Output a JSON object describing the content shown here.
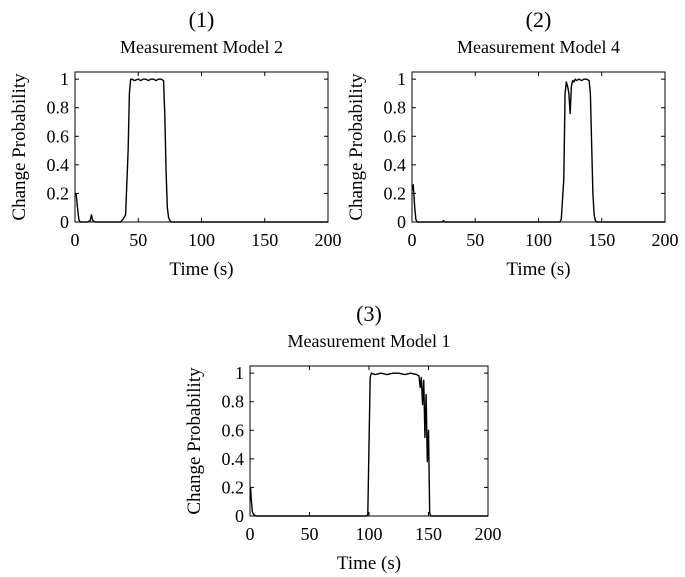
{
  "chart_data": [
    {
      "type": "line",
      "panel_label": "(1)",
      "title": "Measurement Model 2",
      "xlabel": "Time (s)",
      "ylabel": "Change Probability",
      "xlim": [
        0,
        200
      ],
      "ylim": [
        0,
        1.05
      ],
      "xticks": [
        0,
        50,
        100,
        150,
        200
      ],
      "yticks": [
        0,
        0.2,
        0.4,
        0.6,
        0.8,
        1
      ],
      "ytick_labels": [
        "0",
        "0.2",
        "0.4",
        "0.6",
        "0.8",
        "1"
      ],
      "grid": false,
      "series": [
        {
          "x": [
            0,
            1,
            2,
            3,
            4,
            6,
            10,
            12,
            13,
            14,
            16,
            20,
            36,
            37,
            38,
            40,
            42,
            43,
            44,
            45,
            47,
            50,
            52,
            54,
            56,
            58,
            60,
            62,
            64,
            66,
            68,
            70,
            71,
            72,
            73,
            74,
            75,
            76,
            80,
            100,
            120,
            140,
            160,
            180,
            200
          ],
          "y": [
            0.2,
            0.19,
            0.1,
            0.02,
            0,
            0,
            0,
            0.01,
            0.05,
            0.01,
            0,
            0,
            0,
            0.01,
            0.02,
            0.05,
            0.5,
            0.9,
            1.0,
            1.0,
            0.99,
            1.0,
            0.99,
            1.0,
            1.0,
            0.99,
            1.0,
            1.0,
            0.99,
            1.0,
            1.0,
            0.99,
            0.75,
            0.35,
            0.1,
            0.03,
            0.01,
            0,
            0,
            0,
            0,
            0,
            0,
            0,
            0
          ]
        }
      ]
    },
    {
      "type": "line",
      "panel_label": "(2)",
      "title": "Measurement Model 4",
      "xlabel": "Time (s)",
      "ylabel": "Change Probability",
      "xlim": [
        0,
        200
      ],
      "ylim": [
        0,
        1.05
      ],
      "xticks": [
        0,
        50,
        100,
        150,
        200
      ],
      "yticks": [
        0,
        0.2,
        0.4,
        0.6,
        0.8,
        1
      ],
      "ytick_labels": [
        "0",
        "0.2",
        "0.4",
        "0.6",
        "0.8",
        "1"
      ],
      "grid": false,
      "series": [
        {
          "x": [
            0,
            1,
            2,
            3,
            4,
            6,
            20,
            24,
            25,
            26,
            30,
            60,
            100,
            117,
            118,
            120,
            121,
            122,
            123,
            124,
            125,
            126,
            127,
            128,
            129,
            130,
            132,
            134,
            136,
            138,
            140,
            141,
            142,
            143,
            144,
            145,
            146,
            150,
            180,
            200
          ],
          "y": [
            0.22,
            0.26,
            0.12,
            0.02,
            0,
            0,
            0,
            0,
            0.01,
            0,
            0,
            0,
            0,
            0,
            0.02,
            0.3,
            0.9,
            0.98,
            0.95,
            0.9,
            0.76,
            0.95,
            0.99,
            0.98,
            1.0,
            0.99,
            1.0,
            0.99,
            1.0,
            1.0,
            0.99,
            0.9,
            0.55,
            0.2,
            0.05,
            0.01,
            0,
            0,
            0,
            0
          ]
        }
      ]
    },
    {
      "type": "line",
      "panel_label": "(3)",
      "title": "Measurement Model 1",
      "xlabel": "Time (s)",
      "ylabel": "Change Probability",
      "xlim": [
        0,
        200
      ],
      "ylim": [
        0,
        1.05
      ],
      "xticks": [
        0,
        50,
        100,
        150,
        200
      ],
      "yticks": [
        0,
        0.2,
        0.4,
        0.6,
        0.8,
        1
      ],
      "ytick_labels": [
        "0",
        "0.2",
        "0.4",
        "0.6",
        "0.8",
        "1"
      ],
      "grid": false,
      "series": [
        {
          "x": [
            0,
            0.5,
            1,
            2,
            3,
            5,
            20,
            50,
            90,
            98,
            99,
            100,
            101,
            102,
            105,
            110,
            115,
            120,
            125,
            130,
            135,
            140,
            142,
            143,
            144,
            145,
            146,
            147,
            148,
            149,
            150,
            151,
            152,
            155,
            170,
            200
          ],
          "y": [
            0.19,
            0.2,
            0.12,
            0.03,
            0.01,
            0,
            0,
            0,
            0,
            0,
            0.01,
            0.5,
            0.97,
            1.0,
            0.99,
            1.0,
            0.99,
            1.0,
            1.0,
            0.99,
            1.0,
            0.99,
            0.98,
            0.9,
            0.97,
            0.78,
            0.95,
            0.55,
            0.85,
            0.38,
            0.6,
            0.02,
            0,
            0,
            0,
            0
          ]
        }
      ]
    }
  ]
}
